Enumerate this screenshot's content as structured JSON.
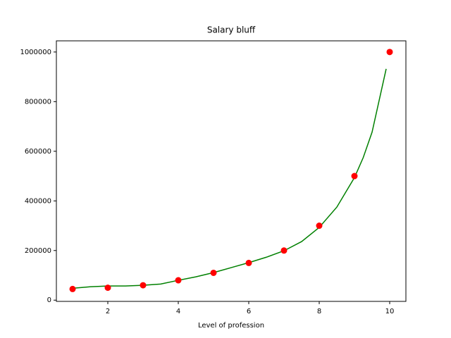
{
  "chart_data": {
    "type": "scatter",
    "title": "Salary bluff",
    "xlabel": "Level of profession",
    "xlim": [
      0.54,
      10.46
    ],
    "xticks": [
      2,
      4,
      6,
      8,
      10
    ],
    "ylim": [
      -5000,
      1045000
    ],
    "yticks": [
      0,
      200000,
      400000,
      600000,
      800000,
      1000000
    ],
    "grid": false,
    "series": [
      {
        "type": "line",
        "color": "green",
        "x": [
          1,
          1.5,
          2,
          2.5,
          3,
          3.5,
          4,
          4.5,
          5,
          5.5,
          6,
          6.5,
          7,
          7.5,
          8,
          8.5,
          9,
          9.25,
          9.5,
          9.9
        ],
        "values": [
          48000,
          54000,
          57000,
          57000,
          60000,
          65000,
          80000,
          94000,
          111000,
          131000,
          151000,
          173000,
          199000,
          236000,
          293000,
          375000,
          494000,
          575000,
          677000,
          932000
        ]
      },
      {
        "type": "scatter",
        "color": "red",
        "x": [
          1,
          2,
          3,
          4,
          5,
          6,
          7,
          8,
          9,
          10
        ],
        "values": [
          45000,
          50000,
          60000,
          80000,
          110000,
          150000,
          200000,
          300000,
          500000,
          1000000
        ]
      }
    ]
  }
}
